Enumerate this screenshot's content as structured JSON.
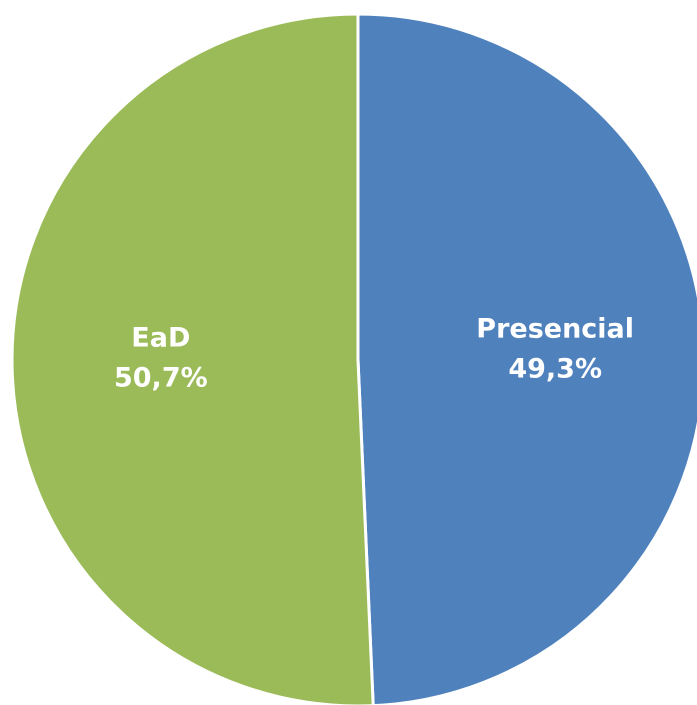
{
  "chart_data": {
    "type": "pie",
    "slices": [
      {
        "name": "Presencial",
        "value": 49.3,
        "percent_label": "49,3%",
        "color": "#4F81BD"
      },
      {
        "name": "EaD",
        "value": 50.7,
        "percent_label": "50,7%",
        "color": "#9BBB59"
      }
    ],
    "slice_border_color": "#ffffff",
    "legend": "none",
    "start": "12 o'clock",
    "direction": "clockwise"
  }
}
